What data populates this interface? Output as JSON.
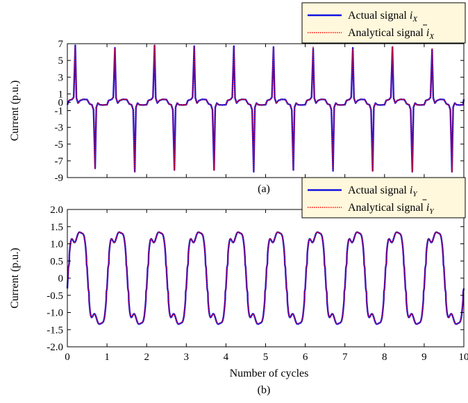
{
  "colors": {
    "actual": "#1010e0",
    "analytical": "#ff0000",
    "legend_bg": "#fff8dc",
    "axis": "#000000"
  },
  "chart_data": [
    {
      "id": "a",
      "type": "line",
      "panel_label": "(a)",
      "ylabel": "Current (p.u.)",
      "xlabel": "",
      "xlim": [
        0,
        10
      ],
      "ylim": [
        -9,
        7
      ],
      "yticks": [
        "7",
        "5",
        "3",
        "1",
        "0",
        "-1",
        "-3",
        "-5",
        "-7",
        "-9"
      ],
      "ytick_values": [
        7,
        5,
        3,
        1,
        0,
        -1,
        -3,
        -5,
        -7,
        -9
      ],
      "xticks_labeled": false,
      "legend": {
        "position": "top-right",
        "entries": [
          {
            "label": "Actual signal",
            "sub": "X",
            "bar": false,
            "style": "solid"
          },
          {
            "label": "Analytical signal",
            "sub": "X",
            "bar": true,
            "style": "dotted"
          }
        ]
      },
      "series": [
        {
          "name": "Actual signal",
          "waveform": "spike",
          "pos_peaks": [
            6.8,
            6.5,
            6.8,
            6.7,
            6.7,
            6.6,
            6.4,
            6.5,
            6.6,
            6.3
          ],
          "neg_peaks": [
            -7.9,
            -8.3,
            -8.1,
            -8.1,
            -8.3,
            -8.1,
            -8.2,
            -8.2,
            -8.3,
            -8.3
          ],
          "baseline": [
            0.35,
            -0.3
          ]
        },
        {
          "name": "Analytical signal",
          "waveform": "spike",
          "pos_peaks": [
            6.7,
            6.4,
            6.8,
            6.6,
            6.6,
            6.5,
            6.7,
            6.4,
            6.6,
            6.4
          ],
          "neg_peaks": [
            -7.9,
            -8.3,
            -8.1,
            -8.1,
            -8.3,
            -8.1,
            -8.2,
            -8.2,
            -8.3,
            -8.3
          ],
          "baseline": [
            0.35,
            -0.3
          ]
        }
      ]
    },
    {
      "id": "b",
      "type": "line",
      "panel_label": "(b)",
      "ylabel": "Current (p.u.)",
      "xlabel": "Number of cycles",
      "xlim": [
        0,
        10
      ],
      "ylim": [
        -2.0,
        2.0
      ],
      "xticks": [
        "0",
        "1",
        "2",
        "3",
        "4",
        "5",
        "6",
        "7",
        "8",
        "9",
        "10"
      ],
      "xtick_values": [
        0,
        1,
        2,
        3,
        4,
        5,
        6,
        7,
        8,
        9,
        10
      ],
      "yticks": [
        "2.0",
        "1.5",
        "1.0",
        "0.5",
        "0",
        "-0.5",
        "-1.0",
        "-1.5",
        "-2.0"
      ],
      "ytick_values": [
        2.0,
        1.5,
        1.0,
        0.5,
        0,
        -0.5,
        -1.0,
        -1.5,
        -2.0
      ],
      "legend": {
        "position": "top-right",
        "entries": [
          {
            "label": "Actual signal",
            "sub": "Y",
            "bar": false,
            "style": "solid"
          },
          {
            "label": "Analytical signal",
            "sub": "Y",
            "bar": true,
            "style": "dotted"
          }
        ]
      },
      "series": [
        {
          "name": "Actual signal",
          "waveform": "stepped-sine",
          "amplitude": 1.6,
          "shoulder": 0.35,
          "cycles": 10
        },
        {
          "name": "Analytical signal",
          "waveform": "stepped-sine",
          "amplitude": 1.6,
          "shoulder": 0.35,
          "cycles": 10
        }
      ]
    }
  ]
}
